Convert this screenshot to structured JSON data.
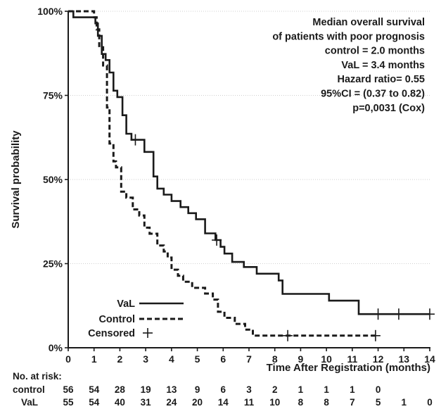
{
  "chart_data": {
    "type": "line",
    "subtype": "kaplan-meier",
    "title": "",
    "xlabel": "Time After Registration (months)",
    "ylabel": "Survival probability",
    "xlim": [
      0,
      14
    ],
    "ylim": [
      0,
      1
    ],
    "x_ticks": [
      0,
      1,
      2,
      3,
      4,
      5,
      6,
      7,
      8,
      9,
      10,
      11,
      12,
      13,
      14
    ],
    "y_ticks": [
      {
        "value": 0,
        "label": "0%"
      },
      {
        "value": 0.25,
        "label": "25%"
      },
      {
        "value": 0.5,
        "label": "50%"
      },
      {
        "value": 0.75,
        "label": "75%"
      },
      {
        "value": 1,
        "label": "100%"
      }
    ],
    "grid": "horizontal",
    "annotation_lines": [
      "Median overall survival",
      "of patients with poor prognosis",
      "control = 2.0 months",
      "VaL = 3.4 months",
      "Hazard ratio= 0.55",
      "95%CI = (0.37 to 0.82)",
      "p=0,0031 (Cox)"
    ],
    "legend": {
      "placement": "bottom-left",
      "entries": [
        {
          "label": "VaL",
          "style": "solid"
        },
        {
          "label": "Control",
          "style": "dashed"
        },
        {
          "label": "Censored",
          "style": "plus"
        }
      ]
    },
    "series": [
      {
        "name": "VaL",
        "style": "solid",
        "x": [
          0,
          0.2,
          1.05,
          1.15,
          1.3,
          1.45,
          1.6,
          1.75,
          1.9,
          2.1,
          2.25,
          2.45,
          2.95,
          3.3,
          3.45,
          3.7,
          4.0,
          4.35,
          4.65,
          4.95,
          5.3,
          5.7,
          5.9,
          6.05,
          6.35,
          6.8,
          7.3,
          8.15,
          8.3,
          9.2,
          10.1,
          11.25,
          12.4,
          14.0
        ],
        "y": [
          1.0,
          0.982,
          0.964,
          0.927,
          0.873,
          0.855,
          0.818,
          0.764,
          0.745,
          0.691,
          0.636,
          0.618,
          0.582,
          0.509,
          0.473,
          0.455,
          0.436,
          0.418,
          0.4,
          0.382,
          0.34,
          0.32,
          0.3,
          0.28,
          0.255,
          0.24,
          0.22,
          0.2,
          0.16,
          0.16,
          0.14,
          0.1,
          0.1,
          0.1
        ],
        "censored": [
          {
            "x": 2.6,
            "y": 0.618
          },
          {
            "x": 5.75,
            "y": 0.32
          },
          {
            "x": 12.0,
            "y": 0.1
          },
          {
            "x": 12.8,
            "y": 0.1
          },
          {
            "x": 14.0,
            "y": 0.1
          }
        ]
      },
      {
        "name": "Control",
        "style": "dashed",
        "x": [
          0,
          1.0,
          1.1,
          1.2,
          1.35,
          1.5,
          1.6,
          1.75,
          1.85,
          2.05,
          2.25,
          2.5,
          2.75,
          2.95,
          3.15,
          3.45,
          3.7,
          3.85,
          4.0,
          4.25,
          4.45,
          4.8,
          5.3,
          5.6,
          5.8,
          6.05,
          6.45,
          6.85,
          7.15,
          7.6,
          8.0,
          11.9
        ],
        "y": [
          1.0,
          0.982,
          0.946,
          0.893,
          0.839,
          0.714,
          0.607,
          0.554,
          0.536,
          0.464,
          0.446,
          0.411,
          0.393,
          0.357,
          0.339,
          0.304,
          0.286,
          0.268,
          0.232,
          0.214,
          0.196,
          0.178,
          0.161,
          0.143,
          0.107,
          0.089,
          0.071,
          0.054,
          0.036,
          0.036,
          0.036,
          0.036
        ],
        "censored": [
          {
            "x": 8.5,
            "y": 0.036
          },
          {
            "x": 11.9,
            "y": 0.036
          }
        ]
      }
    ],
    "risk_table": {
      "header": "No. at risk:",
      "times": [
        0,
        1,
        2,
        3,
        4,
        5,
        6,
        7,
        8,
        9,
        10,
        11,
        12,
        13,
        14
      ],
      "rows": [
        {
          "label": "control",
          "values": [
            "56",
            "54",
            "28",
            "19",
            "13",
            "9",
            "6",
            "3",
            "2",
            "1",
            "1",
            "1",
            "0"
          ]
        },
        {
          "label": "VaL",
          "values": [
            "55",
            "54",
            "40",
            "31",
            "24",
            "20",
            "14",
            "11",
            "10",
            "8",
            "8",
            "7",
            "5",
            "1",
            "0"
          ]
        }
      ]
    }
  }
}
